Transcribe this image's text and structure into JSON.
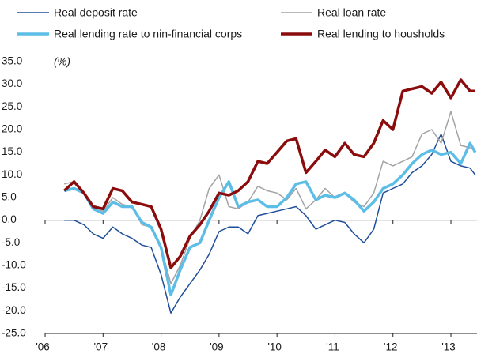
{
  "chart_data": {
    "type": "line",
    "annotation": "(%)",
    "x": [
      2006.33,
      2006.5,
      2006.67,
      2006.83,
      2007,
      2007.17,
      2007.33,
      2007.5,
      2007.67,
      2007.83,
      2008,
      2008.17,
      2008.33,
      2008.5,
      2008.67,
      2008.83,
      2009,
      2009.17,
      2009.33,
      2009.5,
      2009.67,
      2009.83,
      2010,
      2010.17,
      2010.33,
      2010.5,
      2010.67,
      2010.83,
      2011,
      2011.17,
      2011.33,
      2011.5,
      2011.67,
      2011.83,
      2012,
      2012.17,
      2012.33,
      2012.5,
      2012.67,
      2012.83,
      2013,
      2013.17,
      2013.33,
      2013.42
    ],
    "series": [
      {
        "name": "Real deposit rate",
        "color": "#1f4e9a",
        "width": 1.5,
        "values": [
          0,
          0,
          -1,
          -3,
          -4,
          -1.5,
          -3,
          -4,
          -5.5,
          -6,
          -12,
          -20.5,
          -17,
          -14,
          -11,
          -7.5,
          -2.5,
          -1.5,
          -1.5,
          -3,
          1,
          1.5,
          2,
          2.5,
          3,
          1,
          -2,
          -1,
          0,
          -0.5,
          -3,
          -5,
          -2,
          6,
          7,
          8,
          10.5,
          12,
          14.5,
          19,
          13,
          12,
          11.5,
          10
        ]
      },
      {
        "name": "Real loan rate",
        "color": "#a3a3a3",
        "width": 1.5,
        "values": [
          8,
          8.5,
          6,
          3,
          2,
          5,
          3.5,
          3,
          -1,
          -1.5,
          -6,
          -14,
          -10,
          -4,
          0,
          7,
          10,
          3,
          2.5,
          4,
          7.5,
          6.5,
          6,
          4.5,
          7,
          2.5,
          4.5,
          7,
          5,
          6,
          4,
          3,
          6,
          13,
          12,
          13,
          14,
          19,
          20,
          17,
          24,
          16.5,
          16,
          15.5
        ]
      },
      {
        "name": "Real lending rate to nin-financial corps",
        "color": "#5cbde6",
        "width": 3.5,
        "values": [
          6.5,
          7,
          6,
          2.5,
          1.5,
          4,
          3,
          3,
          -0.5,
          -1.5,
          -6,
          -16.5,
          -11,
          -6,
          -5,
          0,
          5,
          8.5,
          3,
          4,
          4.5,
          3,
          3,
          5,
          8,
          8.5,
          4.5,
          5.5,
          5,
          6,
          4.5,
          2,
          4,
          7,
          8,
          10,
          12.5,
          14.5,
          15.5,
          14.5,
          15,
          12.5,
          17,
          15
        ]
      },
      {
        "name": "Real lending to housholds",
        "color": "#8a0c0c",
        "width": 3.5,
        "values": [
          6.5,
          8.5,
          6,
          3,
          2.5,
          7,
          6.5,
          4,
          3.5,
          3,
          -2,
          -10.5,
          -8,
          -3.5,
          -1,
          2,
          6,
          5.5,
          6.5,
          8.5,
          13,
          12.5,
          15,
          17.5,
          18,
          10.5,
          13,
          15.5,
          14,
          17,
          14.5,
          14,
          17,
          22,
          20,
          28.5,
          29,
          29.5,
          28,
          30.5,
          27,
          31,
          28.5,
          28.5
        ]
      }
    ],
    "xlim": [
      2006,
      2013.45
    ],
    "xticks": [
      {
        "value": 2006,
        "label": "'06"
      },
      {
        "value": 2007,
        "label": "'07"
      },
      {
        "value": 2008,
        "label": "'08"
      },
      {
        "value": 2009,
        "label": "'09"
      },
      {
        "value": 2010,
        "label": "'10"
      },
      {
        "value": 2011,
        "label": "'11"
      },
      {
        "value": 2012,
        "label": "'12"
      },
      {
        "value": 2013,
        "label": "'13"
      }
    ],
    "ylim": [
      -25,
      35
    ],
    "yticks": [
      {
        "value": 35,
        "label": "35.0"
      },
      {
        "value": 30,
        "label": "30.0"
      },
      {
        "value": 25,
        "label": "25.0"
      },
      {
        "value": 20,
        "label": "20.0"
      },
      {
        "value": 15,
        "label": "15.0"
      },
      {
        "value": 10,
        "label": "10.0"
      },
      {
        "value": 5,
        "label": "5.0"
      },
      {
        "value": 0,
        "label": "0.0"
      },
      {
        "value": -5,
        "label": "-5.0"
      },
      {
        "value": -10,
        "label": "-10.0"
      },
      {
        "value": -15,
        "label": "-15.0"
      },
      {
        "value": -20,
        "label": "-20.0"
      },
      {
        "value": -25,
        "label": "-25.0"
      }
    ]
  }
}
